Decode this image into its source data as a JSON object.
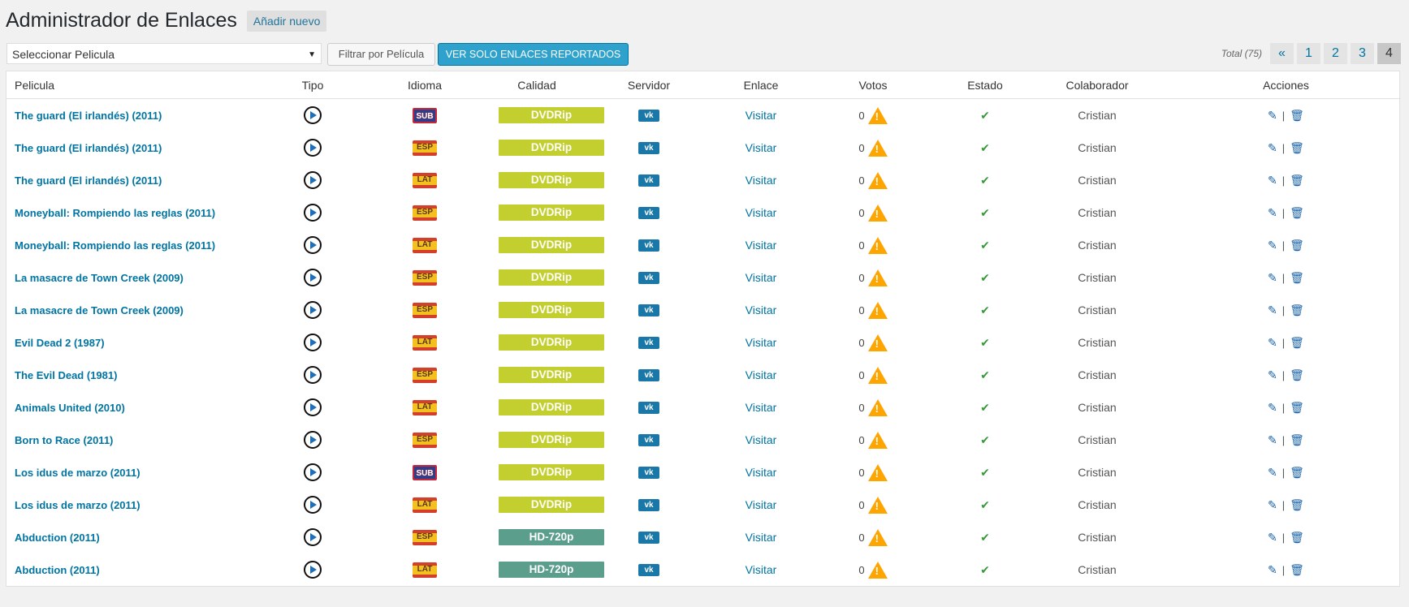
{
  "header": {
    "title": "Administrador de Enlaces",
    "add_new": "Añadir nuevo"
  },
  "toolbar": {
    "select_value": "Seleccionar Pelicula",
    "filter_label": "Filtrar por Película",
    "reported_label": "VER SOLO ENLACES REPORTADOS"
  },
  "pagination": {
    "total": "Total (75)",
    "prev": "«",
    "pages": [
      "1",
      "2",
      "3",
      "4"
    ],
    "current": "4"
  },
  "table": {
    "columns": [
      "Pelicula",
      "Tipo",
      "Idioma",
      "Calidad",
      "Servidor",
      "Enlace",
      "Votos",
      "Estado",
      "Colaborador",
      "Acciones"
    ],
    "rows": [
      {
        "movie": "The guard (El irlandés) (2011)",
        "lang": "SUB",
        "quality": "DVDRip",
        "server": "vk",
        "link": "Visitar",
        "votes": "0",
        "collab": "Cristian"
      },
      {
        "movie": "The guard (El irlandés) (2011)",
        "lang": "ESP",
        "quality": "DVDRip",
        "server": "vk",
        "link": "Visitar",
        "votes": "0",
        "collab": "Cristian"
      },
      {
        "movie": "The guard (El irlandés) (2011)",
        "lang": "LAT",
        "quality": "DVDRip",
        "server": "vk",
        "link": "Visitar",
        "votes": "0",
        "collab": "Cristian"
      },
      {
        "movie": "Moneyball: Rompiendo las reglas (2011)",
        "lang": "ESP",
        "quality": "DVDRip",
        "server": "vk",
        "link": "Visitar",
        "votes": "0",
        "collab": "Cristian"
      },
      {
        "movie": "Moneyball: Rompiendo las reglas (2011)",
        "lang": "LAT",
        "quality": "DVDRip",
        "server": "vk",
        "link": "Visitar",
        "votes": "0",
        "collab": "Cristian"
      },
      {
        "movie": "La masacre de Town Creek (2009)",
        "lang": "ESP",
        "quality": "DVDRip",
        "server": "vk",
        "link": "Visitar",
        "votes": "0",
        "collab": "Cristian"
      },
      {
        "movie": "La masacre de Town Creek (2009)",
        "lang": "ESP",
        "quality": "DVDRip",
        "server": "vk",
        "link": "Visitar",
        "votes": "0",
        "collab": "Cristian"
      },
      {
        "movie": "Evil Dead 2 (1987)",
        "lang": "LAT",
        "quality": "DVDRip",
        "server": "vk",
        "link": "Visitar",
        "votes": "0",
        "collab": "Cristian"
      },
      {
        "movie": "The Evil Dead (1981)",
        "lang": "ESP",
        "quality": "DVDRip",
        "server": "vk",
        "link": "Visitar",
        "votes": "0",
        "collab": "Cristian"
      },
      {
        "movie": "Animals United (2010)",
        "lang": "LAT",
        "quality": "DVDRip",
        "server": "vk",
        "link": "Visitar",
        "votes": "0",
        "collab": "Cristian"
      },
      {
        "movie": "Born to Race (2011)",
        "lang": "ESP",
        "quality": "DVDRip",
        "server": "vk",
        "link": "Visitar",
        "votes": "0",
        "collab": "Cristian"
      },
      {
        "movie": "Los idus de marzo (2011)",
        "lang": "SUB",
        "quality": "DVDRip",
        "server": "vk",
        "link": "Visitar",
        "votes": "0",
        "collab": "Cristian"
      },
      {
        "movie": "Los idus de marzo (2011)",
        "lang": "LAT",
        "quality": "DVDRip",
        "server": "vk",
        "link": "Visitar",
        "votes": "0",
        "collab": "Cristian"
      },
      {
        "movie": "Abduction (2011)",
        "lang": "ESP",
        "quality": "HD-720p",
        "server": "vk",
        "link": "Visitar",
        "votes": "0",
        "collab": "Cristian"
      },
      {
        "movie": "Abduction (2011)",
        "lang": "LAT",
        "quality": "HD-720p",
        "server": "vk",
        "link": "Visitar",
        "votes": "0",
        "collab": "Cristian"
      }
    ]
  },
  "icons": {
    "type": "play-circle-icon",
    "votes": "warning-icon",
    "status": "check-icon",
    "edit": "pencil-icon",
    "delete": "trash-icon"
  },
  "colors": {
    "accent": "#0074a2",
    "dvdrip": "#c2cf2e",
    "hd": "#5b9e8c",
    "warning": "#ffa500",
    "check": "#3a9a3a"
  }
}
